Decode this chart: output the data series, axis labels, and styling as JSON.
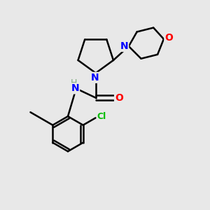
{
  "background_color": "#e8e8e8",
  "bond_color": "#000000",
  "n_color": "#0000ff",
  "o_color": "#ff0000",
  "cl_color": "#00bb00",
  "h_color": "#7faa7f",
  "line_width": 1.8,
  "figsize": [
    3.0,
    3.0
  ],
  "dpi": 100,
  "xlim": [
    0,
    10
  ],
  "ylim": [
    0,
    10
  ]
}
